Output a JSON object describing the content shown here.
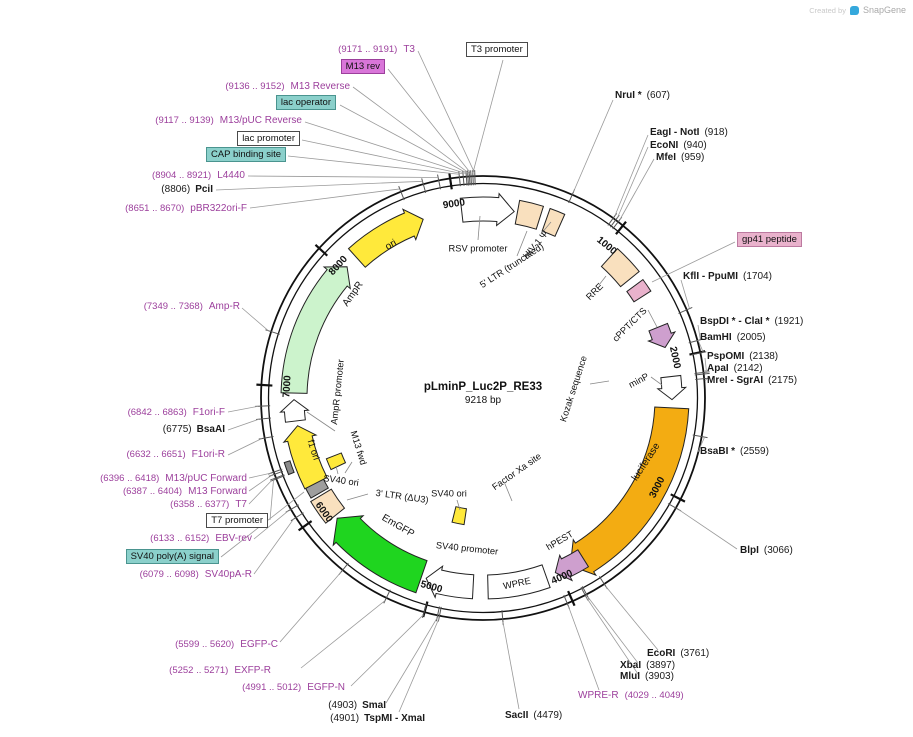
{
  "watermark": {
    "created_by": "Created by",
    "brand": "SnapGene"
  },
  "plasmid": {
    "name": "pLminP_Luc2P_RE33",
    "size": "9218 bp"
  },
  "scale_markers": [
    "1000",
    "2000",
    "3000",
    "4000",
    "5000",
    "6000",
    "7000",
    "8000",
    "9000"
  ],
  "feature_labels": {
    "rsv_promoter": "RSV promoter",
    "ltr5": "5' LTR (truncated)",
    "hiv_psi": "HIV-1 Ψ",
    "rre": "RRE",
    "cppt": "cPPT/CTS",
    "kozak": "Kozak sequence",
    "minp": "minP",
    "luciferase": "luciferase",
    "hpest": "hPEST",
    "wpre": "WPRE",
    "sv40_promoter": "SV40 promoter",
    "sv40_ori_1": "SV40 ori",
    "emgfp": "EmGFP",
    "ltr3": "3' LTR (ΔU3)",
    "sv40_ori_2": "SV40 ori",
    "m13_fwd": "M13 fwd",
    "f1_ori": "f1 ori",
    "ampr_promoter": "AmpR promoter",
    "ampr": "AmpR",
    "ori": "ori",
    "factor_xa": "Factor Xa site"
  },
  "boxed_labels": {
    "t3_promoter": "T3 promoter",
    "m13_rev": "M13 rev",
    "lac_operator": "lac operator",
    "lac_promoter": "lac promoter",
    "cap_binding_site": "CAP binding site",
    "t7_promoter": "T7 promoter",
    "sv40_polya": "SV40 poly(A) signal",
    "gp41_peptide": "gp41 peptide"
  },
  "enzyme_labels": {
    "nrui": {
      "name": "NruI *",
      "pos": "(607)"
    },
    "eagi_noti": {
      "name": "EagI - NotI",
      "pos": "(918)"
    },
    "econi": {
      "name": "EcoNI",
      "pos": "(940)"
    },
    "mfei": {
      "name": "MfeI",
      "pos": "(959)"
    },
    "kfli_ppumi": {
      "name": "KflI - PpuMI",
      "pos": "(1704)"
    },
    "bspdi_clai": {
      "name": "BspDI * - ClaI *",
      "pos": "(1921)"
    },
    "bamhi": {
      "name": "BamHI",
      "pos": "(2005)"
    },
    "pspomi": {
      "name": "PspOMI",
      "pos": "(2138)"
    },
    "apai": {
      "name": "ApaI",
      "pos": "(2142)"
    },
    "mrei_sgrai": {
      "name": "MreI - SgrAI",
      "pos": "(2175)"
    },
    "bsabi": {
      "name": "BsaBI *",
      "pos": "(2559)"
    },
    "blpi": {
      "name": "BlpI",
      "pos": "(3066)"
    },
    "ecori": {
      "name": "EcoRI",
      "pos": "(3761)"
    },
    "xbai": {
      "name": "XbaI",
      "pos": "(3897)"
    },
    "mlui": {
      "name": "MluI",
      "pos": "(3903)"
    },
    "sacii": {
      "name": "SacII",
      "pos": "(4479)"
    },
    "smai": {
      "name": "SmaI",
      "pos": "(4903)"
    },
    "tspmi_xmai": {
      "name": "TspMI - XmaI",
      "pos": "(4901)"
    },
    "bsaai": {
      "name": "BsaAI",
      "pos": "(6775)"
    },
    "pcii": {
      "name": "PciI",
      "pos": "(8806)"
    }
  },
  "primer_labels": {
    "t3": {
      "range": "(9171 .. 9191)",
      "name": "T3"
    },
    "m13_reverse": {
      "range": "(9136 .. 9152)",
      "name": "M13 Reverse"
    },
    "m13puc_reverse": {
      "range": "(9117 .. 9139)",
      "name": "M13/pUC Reverse"
    },
    "l4440": {
      "range": "(8904 .. 8921)",
      "name": "L4440"
    },
    "pbr322ori_f": {
      "range": "(8651 .. 8670)",
      "name": "pBR322ori-F"
    },
    "amp_r": {
      "range": "(7349 .. 7368)",
      "name": "Amp-R"
    },
    "f1ori_f": {
      "range": "(6842 .. 6863)",
      "name": "F1ori-F"
    },
    "f1ori_r": {
      "range": "(6632 .. 6651)",
      "name": "F1ori-R"
    },
    "m13puc_forward": {
      "range": "(6396 .. 6418)",
      "name": "M13/pUC Forward"
    },
    "m13_forward": {
      "range": "(6387 .. 6404)",
      "name": "M13 Forward"
    },
    "t7": {
      "range": "(6358 .. 6377)",
      "name": "T7"
    },
    "ebv_rev": {
      "range": "(6133 .. 6152)",
      "name": "EBV-rev"
    },
    "sv40pa_r": {
      "range": "(6079 .. 6098)",
      "name": "SV40pA-R"
    },
    "egfp_c": {
      "range": "(5599 .. 5620)",
      "name": "EGFP-C"
    },
    "exfp_r": {
      "range": "(5252 .. 5271)",
      "name": "EXFP-R"
    },
    "egfp_n": {
      "range": "(4991 .. 5012)",
      "name": "EGFP-N"
    },
    "wpre_r": {
      "range": "(4029 .. 4049)",
      "name": "WPRE-R"
    }
  }
}
